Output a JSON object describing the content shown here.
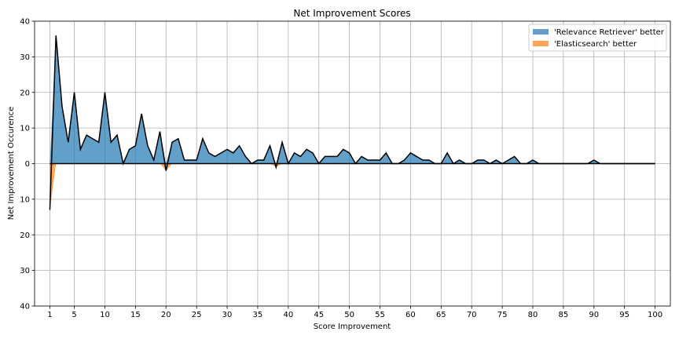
{
  "chart_data": {
    "type": "area",
    "title": "Net Improvement Scores",
    "xlabel": "Score Improvement",
    "ylabel": "Net Improvement Occurence",
    "xlim": [
      -1.5,
      102.5
    ],
    "ylim": [
      -40,
      40
    ],
    "xticks": [
      1,
      5,
      10,
      15,
      20,
      25,
      30,
      35,
      40,
      45,
      50,
      55,
      60,
      65,
      70,
      75,
      80,
      85,
      90,
      95,
      100
    ],
    "yticks": [
      {
        "value": 40,
        "label": "40"
      },
      {
        "value": 30,
        "label": "30"
      },
      {
        "value": 20,
        "label": "20"
      },
      {
        "value": 10,
        "label": "10"
      },
      {
        "value": 0,
        "label": "0"
      },
      {
        "value": -10,
        "label": "10"
      },
      {
        "value": -20,
        "label": "20"
      },
      {
        "value": -30,
        "label": "30"
      },
      {
        "value": -40,
        "label": "40"
      }
    ],
    "grid": true,
    "legend_position": "top-right",
    "series": [
      {
        "name": "'Relevance Retriever' better",
        "color": "#1f77b4"
      },
      {
        "name": "'Elasticsearch' better",
        "color": "#ff7f0e"
      }
    ],
    "x": [
      1,
      2,
      3,
      4,
      5,
      6,
      7,
      8,
      9,
      10,
      11,
      12,
      13,
      14,
      15,
      16,
      17,
      18,
      19,
      20,
      21,
      22,
      23,
      24,
      25,
      26,
      27,
      28,
      29,
      30,
      31,
      32,
      33,
      34,
      35,
      36,
      37,
      38,
      39,
      40,
      41,
      42,
      43,
      44,
      45,
      46,
      47,
      48,
      49,
      50,
      51,
      52,
      53,
      54,
      55,
      56,
      57,
      58,
      59,
      60,
      61,
      62,
      63,
      64,
      65,
      66,
      67,
      68,
      69,
      70,
      71,
      72,
      73,
      74,
      75,
      76,
      77,
      78,
      79,
      80,
      81,
      82,
      83,
      84,
      85,
      86,
      87,
      88,
      89,
      90,
      91,
      92,
      93,
      94,
      95,
      96,
      97,
      98,
      99,
      100
    ],
    "values": [
      -13,
      36,
      16,
      6,
      20,
      4,
      8,
      7,
      6,
      20,
      6,
      8,
      0,
      4,
      5,
      14,
      5,
      1,
      9,
      -2,
      6,
      7,
      1,
      1,
      1,
      7,
      3,
      2,
      3,
      4,
      3,
      5,
      2,
      0,
      1,
      1,
      5,
      -1,
      6,
      0,
      3,
      2,
      4,
      3,
      0,
      2,
      2,
      2,
      4,
      3,
      0,
      2,
      1,
      1,
      1,
      3,
      0,
      0,
      1,
      3,
      2,
      1,
      1,
      0,
      0,
      3,
      0,
      1,
      0,
      0,
      1,
      1,
      0,
      1,
      0,
      1,
      2,
      0,
      0,
      1,
      0,
      0,
      0,
      0,
      0,
      0,
      0,
      0,
      0,
      1,
      0,
      0,
      0,
      0,
      0,
      0,
      0,
      0,
      0,
      0
    ],
    "line_color": "#000000",
    "zero_line": true
  }
}
